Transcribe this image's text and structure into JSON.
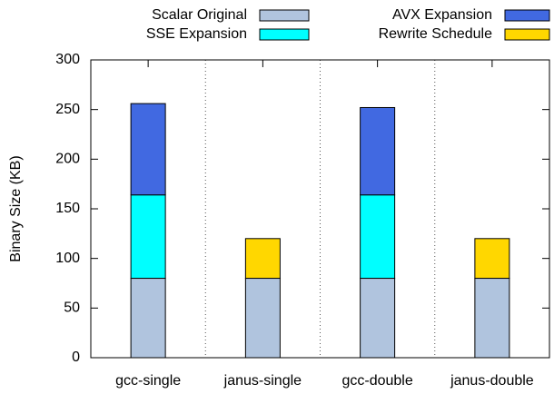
{
  "chart_data": {
    "type": "stacked_bar",
    "y_label": "Binary Size (KB)",
    "categories": [
      "gcc-single",
      "janus-single",
      "gcc-double",
      "janus-double"
    ],
    "series": [
      {
        "name": "Scalar Original",
        "color": "#b0c4de",
        "values": [
          80,
          80,
          80,
          80
        ]
      },
      {
        "name": "SSE Expansion",
        "color": "#00ffff",
        "values": [
          84,
          null,
          84,
          null
        ]
      },
      {
        "name": "AVX Expansion",
        "color": "#4169e1",
        "values": [
          92,
          null,
          88,
          null
        ]
      },
      {
        "name": "Rewrite Schedule",
        "color": "#ffd700",
        "values": [
          null,
          40,
          null,
          40
        ]
      }
    ],
    "ylim": [
      0,
      300
    ],
    "yticks": [
      0,
      50,
      100,
      150,
      200,
      250,
      300
    ]
  }
}
